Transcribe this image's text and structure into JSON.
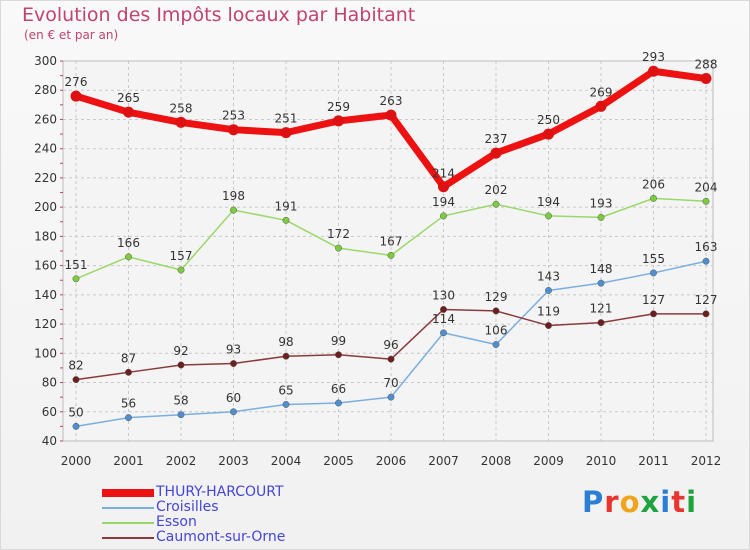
{
  "title": "Evolution des Impôts locaux par Habitant",
  "subtitle": "(en € et par an)",
  "brand": {
    "text": "Proxiti",
    "colors": [
      "#2a7fd4",
      "#e8352f",
      "#f2a51c",
      "#1fa33d",
      "#2a7fd4",
      "#e8352f",
      "#1fa33d"
    ]
  },
  "chart_data": {
    "type": "line",
    "title": "Evolution des Impôts locaux par Habitant",
    "subtitle": "(en € et par an)",
    "xlabel": "",
    "ylabel": "",
    "ylim": [
      40,
      300
    ],
    "yticks": [
      40,
      60,
      80,
      100,
      120,
      140,
      160,
      180,
      200,
      220,
      240,
      260,
      280,
      300
    ],
    "grid": true,
    "legend_position": "bottom-left",
    "x": [
      "2000",
      "2001",
      "2002",
      "2003",
      "2004",
      "2005",
      "2006",
      "2007",
      "2008",
      "2009",
      "2010",
      "2011",
      "2012"
    ],
    "series": [
      {
        "name": "THURY-HARCOURT",
        "color": "#ee1111",
        "marker": "#dd1111",
        "width": 7,
        "values": [
          276,
          265,
          258,
          253,
          251,
          259,
          263,
          214,
          237,
          250,
          269,
          293,
          288
        ]
      },
      {
        "name": "Croisilles",
        "color": "#7aaee0",
        "marker": "#4f8fd0",
        "width": 1.5,
        "values": [
          50,
          56,
          58,
          60,
          65,
          66,
          70,
          114,
          106,
          143,
          148,
          155,
          163
        ]
      },
      {
        "name": "Esson",
        "color": "#9ad86a",
        "marker": "#7ccc3e",
        "width": 1.5,
        "values": [
          151,
          166,
          157,
          198,
          191,
          172,
          167,
          194,
          202,
          194,
          193,
          206,
          204
        ]
      },
      {
        "name": "Caumont-sur-Orne",
        "color": "#8a3a3a",
        "marker": "#6d1f1f",
        "width": 1.5,
        "values": [
          82,
          87,
          92,
          93,
          98,
          99,
          96,
          130,
          129,
          119,
          121,
          127,
          127
        ]
      }
    ]
  }
}
